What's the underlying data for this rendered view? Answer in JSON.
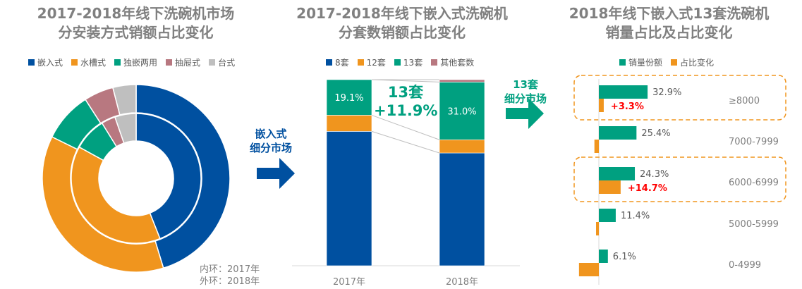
{
  "chart_data": [
    {
      "type": "pie",
      "title": "2017-2018年线下洗碗机市场\n分安装方式销额占比变化",
      "categories": [
        "嵌入式",
        "水槽式",
        "独嵌两用",
        "抽屉式",
        "台式"
      ],
      "colors": [
        "#0050A0",
        "#F0951E",
        "#00A080",
        "#B87880",
        "#BFBFBF"
      ],
      "series": [
        {
          "name": "内环：2017年",
          "values": [
            44,
            39,
            8.2,
            3.5,
            5.3
          ]
        },
        {
          "name": "外环：2018年",
          "values": [
            45.3,
            37,
            8.6,
            5.1,
            4
          ]
        }
      ],
      "legend": "top"
    },
    {
      "type": "bar",
      "stacked": true,
      "title": "2017-2018年线下嵌入式洗碗机\n分套数销额占比变化",
      "categories": [
        "2017年",
        "2018年"
      ],
      "series": [
        {
          "name": "8套",
          "color": "#0050A0",
          "values": [
            72.2,
            60.6
          ]
        },
        {
          "name": "12套",
          "color": "#F0951E",
          "values": [
            8.7,
            7.1
          ]
        },
        {
          "name": "13套",
          "color": "#00A080",
          "values": [
            19.1,
            31.0
          ],
          "labels": [
            "19.1%",
            "31.0%"
          ]
        },
        {
          "name": "其他套数",
          "color": "#B87880",
          "values": [
            0,
            1.3
          ]
        }
      ],
      "ylim": [
        0,
        100
      ],
      "annotation": [
        "13套",
        "+11.9%"
      ],
      "legend": "top"
    },
    {
      "type": "bar",
      "orientation": "horizontal",
      "title": "2018年线下嵌入式13套洗碗机\n销量占比及占比变化",
      "categories": [
        "≥8000",
        "7000-7999",
        "6000-6999",
        "5000-5999",
        "0-4999"
      ],
      "series": [
        {
          "name": "销量份额",
          "color": "#00A080",
          "values": [
            32.9,
            25.4,
            24.3,
            11.4,
            6.1
          ],
          "labels": [
            "32.9%",
            "25.4%",
            "24.3%",
            "11.4%",
            "6.1%"
          ]
        },
        {
          "name": "占比变化",
          "color": "#F0951E",
          "values": [
            3.3,
            -3.0,
            14.7,
            -1.9,
            -13.4
          ],
          "labels": [
            "+3.3%",
            "",
            "+14.7%",
            "",
            ""
          ]
        }
      ],
      "highlight": [
        "≥8000",
        "6000-6999"
      ],
      "legend": "top"
    }
  ],
  "ring_note": [
    "内环：2017年",
    "外环：2018年"
  ],
  "arrows": {
    "left": [
      "嵌入式",
      "细分市场"
    ],
    "right": [
      "13套",
      "细分市场"
    ]
  }
}
